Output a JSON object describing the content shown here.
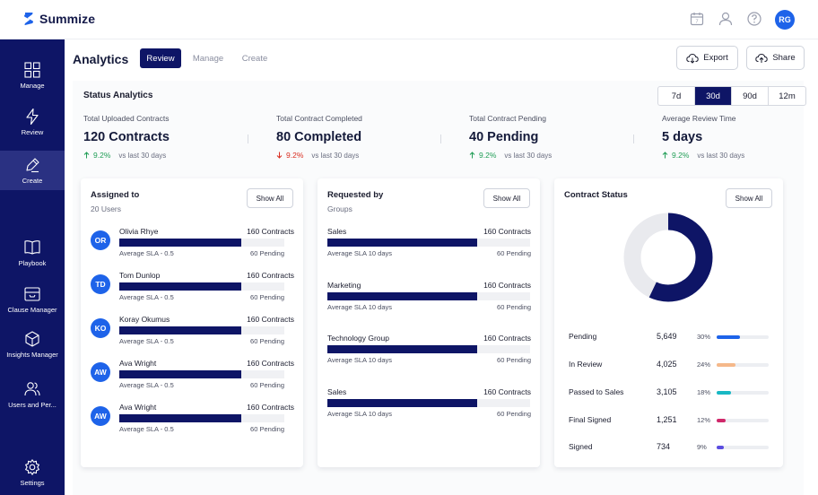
{
  "app": {
    "name": "Summize"
  },
  "user": {
    "initials": "RG"
  },
  "colors": {
    "navy": "#0e1566",
    "blue": "#1e63e9",
    "up": "#1f9d55",
    "down": "#d92d20"
  },
  "sidebar": {
    "items": [
      {
        "label": "Manage",
        "icon": "grid-icon"
      },
      {
        "label": "Review",
        "icon": "lightning-icon"
      },
      {
        "label": "Create",
        "icon": "pen-icon",
        "active": true
      },
      {
        "label": "Playbook",
        "icon": "book-icon"
      },
      {
        "label": "Clause Manager",
        "icon": "tray-icon"
      },
      {
        "label": "Insights Manager",
        "icon": "cube-icon"
      },
      {
        "label": "Users and Per...",
        "icon": "users-icon"
      },
      {
        "label": "Settings",
        "icon": "gear-icon"
      }
    ]
  },
  "header": {
    "title": "Analytics",
    "tabs": [
      {
        "label": "Review",
        "active": true
      },
      {
        "label": "Manage"
      },
      {
        "label": "Create"
      }
    ],
    "export_label": "Export",
    "share_label": "Share"
  },
  "status": {
    "title": "Status Analytics",
    "ranges": [
      {
        "label": "7d"
      },
      {
        "label": "30d",
        "active": true
      },
      {
        "label": "90d"
      },
      {
        "label": "12m"
      }
    ],
    "stats": [
      {
        "label": "Total Uploaded Contracts",
        "value": "120 Contracts",
        "change": "9.2%",
        "direction": "up",
        "vs": "vs last 30 days"
      },
      {
        "label": "Total Contract Completed",
        "value": "80 Completed",
        "change": "9.2%",
        "direction": "down",
        "vs": "vs last 30 days"
      },
      {
        "label": "Total Contract Pending",
        "value": "40 Pending",
        "change": "9.2%",
        "direction": "up",
        "vs": "vs last 30 days"
      },
      {
        "label": "Average Review Time",
        "value": "5 days",
        "change": "9.2%",
        "direction": "up",
        "vs": "vs last 30 days"
      }
    ]
  },
  "assigned": {
    "title": "Assigned to",
    "subtitle": "20 Users",
    "show_all": "Show All",
    "rows": [
      {
        "initials": "OR",
        "name": "Olivia Rhye",
        "count": "160 Contracts",
        "fill": 0.74,
        "sla": "Average SLA - 0.5",
        "pending": "60 Pending"
      },
      {
        "initials": "TD",
        "name": "Tom Dunlop",
        "count": "160 Contracts",
        "fill": 0.74,
        "sla": "Average SLA - 0.5",
        "pending": "60 Pending"
      },
      {
        "initials": "KO",
        "name": "Koray Okumus",
        "count": "160 Contracts",
        "fill": 0.74,
        "sla": "Average SLA - 0.5",
        "pending": "60 Pending"
      },
      {
        "initials": "AW",
        "name": "Ava Wright",
        "count": "160 Contracts",
        "fill": 0.74,
        "sla": "Average SLA - 0.5",
        "pending": "60 Pending"
      },
      {
        "initials": "AW",
        "name": "Ava Wright",
        "count": "160 Contracts",
        "fill": 0.74,
        "sla": "Average SLA - 0.5",
        "pending": "60 Pending"
      }
    ]
  },
  "requested": {
    "title": "Requested by",
    "subtitle": "Groups",
    "show_all": "Show All",
    "rows": [
      {
        "name": "Sales",
        "count": "160 Contracts",
        "fill": 0.74,
        "sla": "Average SLA 10 days",
        "pending": "60 Pending"
      },
      {
        "name": "Marketing",
        "count": "160 Contracts",
        "fill": 0.74,
        "sla": "Average SLA 10 days",
        "pending": "60 Pending"
      },
      {
        "name": "Technology Group",
        "count": "160 Contracts",
        "fill": 0.74,
        "sla": "Average SLA 10 days",
        "pending": "60 Pending"
      },
      {
        "name": "Sales",
        "count": "160 Contracts",
        "fill": 0.74,
        "sla": "Average SLA 10 days",
        "pending": "60 Pending"
      }
    ]
  },
  "contract_status": {
    "title": "Contract Status",
    "show_all": "Show All",
    "donut_filled": 0.57,
    "donut_color": "#0e1566",
    "donut_track": "#e9eaee",
    "legend": [
      {
        "name": "Pending",
        "value": "5,649",
        "pct": "30%",
        "fraction": 0.3,
        "color": "#1e63e9"
      },
      {
        "name": "In Review",
        "value": "4,025",
        "pct": "24%",
        "fraction": 0.24,
        "color": "#f5b88a"
      },
      {
        "name": "Passed to Sales",
        "value": "3,105",
        "pct": "18%",
        "fraction": 0.18,
        "color": "#18b8c4"
      },
      {
        "name": "Final Signed",
        "value": "1,251",
        "pct": "12%",
        "fraction": 0.12,
        "color": "#d0286a"
      },
      {
        "name": "Signed",
        "value": "734",
        "pct": "9%",
        "fraction": 0.09,
        "color": "#5b4de0"
      }
    ]
  }
}
